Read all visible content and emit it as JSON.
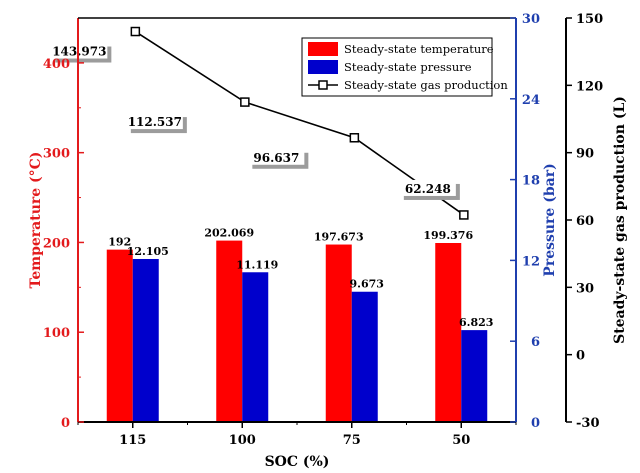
{
  "chart_data": {
    "type": "bar",
    "categories": [
      "115",
      "100",
      "75",
      "50"
    ],
    "xlabel": "SOC (%)",
    "axes": {
      "left": {
        "label": "Temperature (°C)",
        "min": 0,
        "max": 450,
        "ticks": [
          0,
          100,
          200,
          300,
          400
        ],
        "color": "#e31a1c"
      },
      "right_inner": {
        "label": "Pressure (bar)",
        "min": 0,
        "max": 30,
        "ticks": [
          0,
          6,
          12,
          18,
          24,
          30
        ],
        "color": "#1f3fae"
      },
      "right_outer": {
        "label": "Steady-state gas production (L)",
        "min": -30,
        "max": 150,
        "ticks": [
          -30,
          0,
          30,
          60,
          90,
          120,
          150
        ],
        "color": "#000000"
      }
    },
    "series": [
      {
        "name": "Steady-state temperature",
        "type": "bar",
        "axis": "left",
        "color": "#ff0000",
        "values": [
          192,
          202.069,
          197.673,
          199.376
        ],
        "labels": [
          "192",
          "202.069",
          "197.673",
          "199.376"
        ]
      },
      {
        "name": "Steady-state pressure",
        "type": "bar",
        "axis": "right_inner",
        "color": "#0000cc",
        "values": [
          12.105,
          11.119,
          9.673,
          6.823
        ],
        "labels": [
          "12.105",
          "11.119",
          "9.673",
          "6.823"
        ]
      },
      {
        "name": "Steady-state gas production",
        "type": "line",
        "axis": "right_outer",
        "color": "#000000",
        "values": [
          143.973,
          112.537,
          96.637,
          62.248
        ],
        "labels": [
          "143.973",
          "112.537",
          "96.637",
          "62.248"
        ]
      }
    ],
    "legend_position": "top-right",
    "grid": false
  }
}
